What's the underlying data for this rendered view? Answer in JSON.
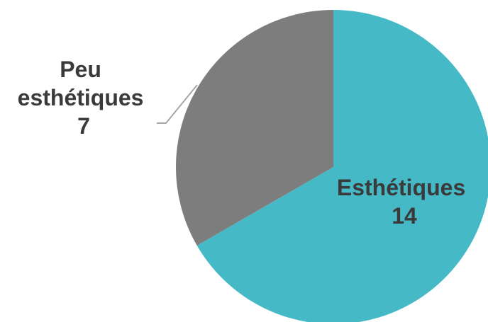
{
  "chart_data": {
    "type": "pie",
    "categories": [
      "Esthétiques",
      "Peu esthétiques"
    ],
    "values": [
      14,
      7
    ],
    "colors": [
      "#45bac6",
      "#7d7d7d"
    ],
    "label_color": "#3a3a3a",
    "leader_line_color": "#a6a6a6",
    "labels": [
      {
        "lines": [
          "Esthétiques",
          "14"
        ]
      },
      {
        "lines": [
          "Peu",
          "esthétiques",
          "7"
        ]
      }
    ]
  }
}
